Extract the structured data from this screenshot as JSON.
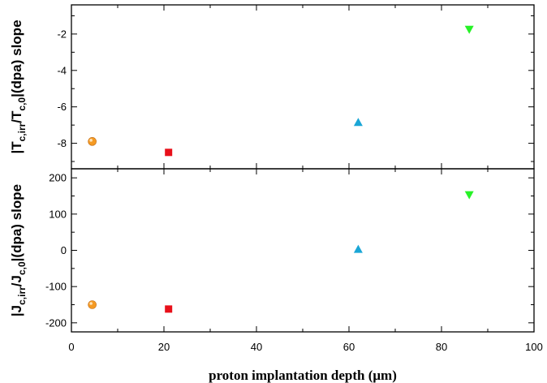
{
  "chart_data": [
    {
      "type": "scatter",
      "panel": "top",
      "ylabel_parts": [
        "|T",
        "c,irr",
        "/T",
        "c,0",
        "|(dpa) slope"
      ],
      "ylim": [
        -9.4,
        -0.4
      ],
      "yticks": [
        -8,
        -6,
        -4,
        -2
      ],
      "xlim": [
        0,
        100
      ],
      "series": [
        {
          "marker": "circle",
          "color": "#f59a23",
          "x": [
            4.5
          ],
          "y": [
            -7.9
          ]
        },
        {
          "marker": "square",
          "color": "#e8101a",
          "x": [
            21
          ],
          "y": [
            -8.5
          ]
        },
        {
          "marker": "triangle-up",
          "color": "#1aa6d6",
          "x": [
            62
          ],
          "y": [
            -6.85
          ]
        },
        {
          "marker": "triangle-down",
          "color": "#27f227",
          "x": [
            86
          ],
          "y": [
            -1.75
          ]
        }
      ]
    },
    {
      "type": "scatter",
      "panel": "bottom",
      "ylabel_parts": [
        "|J",
        "c,irr",
        "/J",
        "c,0",
        "|(dpa) slope"
      ],
      "ylim": [
        -225,
        225
      ],
      "yticks": [
        -200,
        -100,
        0,
        100,
        200
      ],
      "xlim": [
        0,
        100
      ],
      "xticks": [
        0,
        20,
        40,
        60,
        80,
        100
      ],
      "xlabel": "proton implantation depth (μm)",
      "series": [
        {
          "marker": "circle",
          "color": "#f59a23",
          "x": [
            4.5
          ],
          "y": [
            -150
          ]
        },
        {
          "marker": "square",
          "color": "#e8101a",
          "x": [
            21
          ],
          "y": [
            -162
          ]
        },
        {
          "marker": "triangle-up",
          "color": "#1aa6d6",
          "x": [
            62
          ],
          "y": [
            3
          ]
        },
        {
          "marker": "triangle-down",
          "color": "#27f227",
          "x": [
            86
          ],
          "y": [
            153
          ]
        }
      ]
    }
  ]
}
